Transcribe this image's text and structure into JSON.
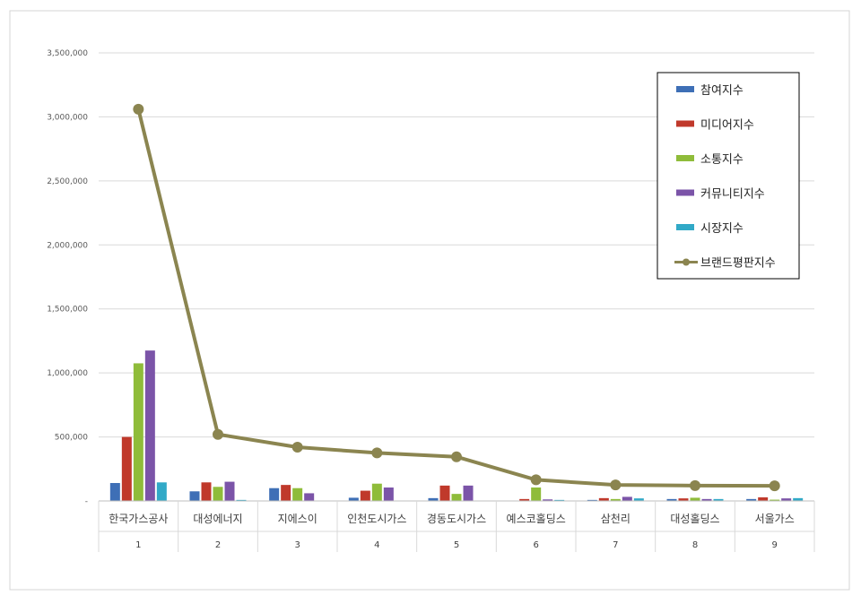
{
  "chart_data": {
    "type": "bar",
    "combo": "clustered-bar-with-line",
    "y_ticks": [
      "3,500,000",
      "3,000,000",
      "2,500,000",
      "2,000,000",
      "1,500,000",
      "1,000,000",
      "500,000",
      "-"
    ],
    "ylim": [
      0,
      3500000
    ],
    "grid": true,
    "legend_position": "top-right",
    "categories": [
      "한국가스공사",
      "대성에너지",
      "지에스이",
      "인천도시가스",
      "경동도시가스",
      "예스코홀딩스",
      "삼천리",
      "대성홀딩스",
      "서울가스"
    ],
    "ranks": [
      "1",
      "2",
      "3",
      "4",
      "5",
      "6",
      "7",
      "8",
      "9"
    ],
    "series": [
      {
        "name": "참여지수",
        "kind": "bar",
        "color": "#3e6fb6",
        "values": [
          140000,
          75000,
          100000,
          25000,
          22000,
          3000,
          8000,
          15000,
          15000
        ]
      },
      {
        "name": "미디어지수",
        "kind": "bar",
        "color": "#c0392b",
        "values": [
          500000,
          145000,
          125000,
          80000,
          120000,
          15000,
          22000,
          20000,
          28000
        ]
      },
      {
        "name": "소통지수",
        "kind": "bar",
        "color": "#8fbc3a",
        "values": [
          1075000,
          110000,
          100000,
          135000,
          55000,
          105000,
          15000,
          25000,
          10000
        ]
      },
      {
        "name": "커뮤니티지수",
        "kind": "bar",
        "color": "#7b54a8",
        "values": [
          1175000,
          150000,
          60000,
          105000,
          120000,
          12000,
          32000,
          15000,
          20000
        ]
      },
      {
        "name": "시장지수",
        "kind": "bar",
        "color": "#31a9c7",
        "values": [
          145000,
          8000,
          0,
          0,
          0,
          8000,
          20000,
          15000,
          22000
        ]
      },
      {
        "name": "브랜드평판지수",
        "kind": "line",
        "color": "#8b8550",
        "values": [
          3060000,
          520000,
          420000,
          375000,
          345000,
          165000,
          125000,
          120000,
          118000
        ]
      }
    ]
  }
}
